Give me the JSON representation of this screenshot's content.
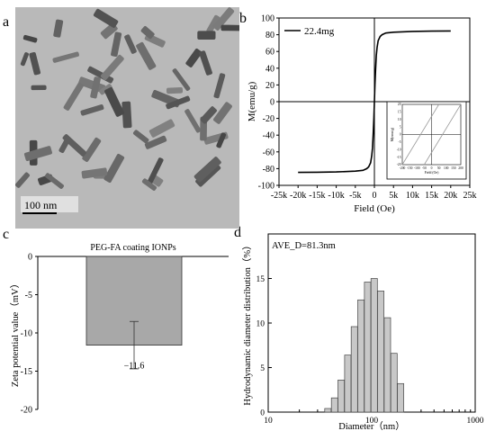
{
  "panels": {
    "a": "a",
    "b": "b",
    "c": "c",
    "d": "d"
  },
  "tem_image": {
    "scale_bar_label": "100  nm",
    "background_color": "#b9b9b9",
    "particle_color": "#6a6a6a"
  },
  "chart_data": [
    {
      "id": "b",
      "type": "line",
      "title": "",
      "xlabel": "Field (Oe)",
      "ylabel": "M(emu/g)",
      "xlim": [
        -25000,
        25000
      ],
      "ylim": [
        -100,
        100
      ],
      "x_tick_labels": [
        "-25k",
        "-20k",
        "-15k",
        "-10k",
        "-5k",
        "0",
        "5k",
        "10k",
        "15k",
        "20k",
        "25k"
      ],
      "y_tick_labels": [
        "100",
        "80",
        "60",
        "40",
        "20",
        "0",
        "-20",
        "-40",
        "-60",
        "-80",
        "-100"
      ],
      "legend": "top-left",
      "series": [
        {
          "name": "22.4mg",
          "color": "#000000",
          "x": [
            -20000,
            -15000,
            -10000,
            -5000,
            -3000,
            -2000,
            -1500,
            -1000,
            -700,
            -500,
            -300,
            -150,
            0,
            150,
            300,
            500,
            700,
            1000,
            1500,
            2000,
            3000,
            5000,
            10000,
            15000,
            20000
          ],
          "y": [
            -84.5,
            -84.3,
            -84,
            -83,
            -82,
            -80,
            -78,
            -73,
            -65,
            -55,
            -38,
            -20,
            0,
            20,
            38,
            55,
            65,
            73,
            78,
            80,
            82,
            83,
            84,
            84.3,
            84.5
          ]
        }
      ],
      "inset": {
        "xlabel": "Field (Oe)",
        "ylabel": "M(emu/g)",
        "xlim": [
          -200,
          200
        ],
        "ylim": [
          -20,
          20
        ],
        "x_tick_labels": [
          "-200",
          "-150",
          "-100",
          "-50",
          "0",
          "50",
          "100",
          "150",
          "200"
        ],
        "y_tick_labels": [
          "20",
          "15",
          "10",
          "5",
          "0",
          "-5",
          "-10",
          "-15",
          "-20"
        ],
        "series": [
          {
            "name": "",
            "x": [
              -200,
              50
            ],
            "y": [
              -20,
              20
            ],
            "color": "#999999"
          },
          {
            "name": "",
            "x": [
              -50,
              200
            ],
            "y": [
              -20,
              20
            ],
            "color": "#999999"
          }
        ]
      }
    },
    {
      "id": "c",
      "type": "bar",
      "title": "PEG-FA coating IONPs",
      "xlabel": "",
      "ylabel": "Zeta potential value（mV）",
      "ylim": [
        -20,
        0
      ],
      "y_tick_labels": [
        "0",
        "-5",
        "-10",
        "-15",
        "-20"
      ],
      "categories": [
        ""
      ],
      "values": [
        -11.6
      ],
      "error": [
        3.1
      ],
      "data_label": "−11.6",
      "bar_color": "#a8a8a8"
    },
    {
      "id": "d",
      "type": "bar",
      "title": "",
      "annotation": "AVE_D=81.3nm",
      "xlabel": "Diameter（nm）",
      "ylabel": "Hydrodynamic diameter distribution（%）",
      "x_scale": "log",
      "xlim": [
        10,
        1000
      ],
      "ylim": [
        0,
        20
      ],
      "x_tick_labels": [
        "10",
        "100",
        "1000"
      ],
      "y_tick_labels": [
        "0",
        "5",
        "10",
        "15"
      ],
      "bar_color": "#c8c8c8",
      "x": [
        37.8,
        43.8,
        50.7,
        58.8,
        68.1,
        78.8,
        91.3,
        105.7,
        122.4,
        141.8,
        164.2,
        190.1
      ],
      "values": [
        0.4,
        1.6,
        3.6,
        6.4,
        9.6,
        12.6,
        14.6,
        15.0,
        13.6,
        10.6,
        6.6,
        3.2
      ]
    }
  ]
}
